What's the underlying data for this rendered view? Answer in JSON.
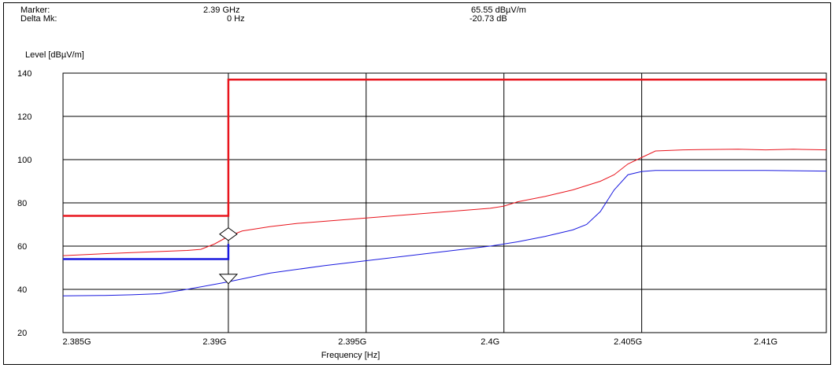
{
  "header": {
    "marker_label": "Marker:",
    "marker_freq": "2.39 GHz",
    "marker_level": "65.55 dBµV/m",
    "delta_label": "Delta Mk:",
    "delta_freq": "0 Hz",
    "delta_level": "-20.73 dB"
  },
  "chart_data": {
    "type": "line",
    "ylabel": "Level [dBµV/m]",
    "xlabel": "Frequency [Hz]",
    "xlim": [
      2.3845,
      2.4122
    ],
    "ylim": [
      20,
      140
    ],
    "x_ticks": [
      2.385,
      2.39,
      2.395,
      2.4,
      2.405,
      2.41
    ],
    "x_tick_labels": [
      "2.385G",
      "2.39G",
      "2.395G",
      "2.4G",
      "2.405G",
      "2.41G"
    ],
    "y_ticks": [
      20,
      40,
      60,
      80,
      100,
      120,
      140
    ],
    "y_tick_labels": [
      "20",
      "40",
      "60",
      "80",
      "100",
      "120",
      "140"
    ],
    "grid": true,
    "vertical_gridlines": [
      2.3845,
      2.3905,
      2.3955,
      2.4005,
      2.4055,
      2.4122
    ],
    "series": [
      {
        "color": "#e8141c",
        "x": [
          2.3845,
          2.386,
          2.387,
          2.388,
          2.389,
          2.3895,
          2.39,
          2.3905,
          2.391,
          2.392,
          2.393,
          2.394,
          2.395,
          2.396,
          2.397,
          2.398,
          2.399,
          2.4,
          2.4005,
          2.401,
          2.402,
          2.403,
          2.404,
          2.4045,
          2.405,
          2.4055,
          2.406,
          2.407,
          2.408,
          2.409,
          2.41,
          2.411,
          2.4122
        ],
        "values": [
          55.6,
          56.5,
          57,
          57.5,
          58,
          58.5,
          61,
          64.5,
          67,
          69,
          70.5,
          71.5,
          72.5,
          73.5,
          74.5,
          75.5,
          76.5,
          77.5,
          78.5,
          80.5,
          83,
          86,
          90,
          93,
          98,
          101,
          104,
          104.5,
          104.7,
          104.8,
          104.5,
          104.8,
          104.5
        ]
      },
      {
        "color": "#1a1adf",
        "x": [
          2.3845,
          2.386,
          2.387,
          2.388,
          2.389,
          2.3905,
          2.392,
          2.394,
          2.396,
          2.398,
          2.4,
          2.401,
          2.402,
          2.403,
          2.4035,
          2.404,
          2.4045,
          2.405,
          2.4055,
          2.406,
          2.408,
          2.41,
          2.4122
        ],
        "values": [
          37,
          37.2,
          37.5,
          38,
          40,
          43.5,
          47.5,
          51,
          54,
          57,
          60,
          62,
          64.5,
          67.5,
          70,
          76,
          86,
          93,
          94.5,
          95,
          95,
          95,
          94.7
        ]
      }
    ],
    "limit_lines": [
      {
        "color": "#e8141c",
        "x": [
          2.3845,
          2.3905,
          2.3905,
          2.4122
        ],
        "values": [
          74,
          74,
          137,
          137
        ]
      },
      {
        "color": "#1a1adf",
        "x": [
          2.3845,
          2.3905,
          2.3905
        ],
        "values": [
          54,
          54,
          61
        ]
      }
    ],
    "markers": [
      {
        "shape": "diamond",
        "x": 2.3905,
        "value": 65.55
      },
      {
        "shape": "triangle-down",
        "x": 2.3905,
        "value": 44.8
      }
    ]
  }
}
